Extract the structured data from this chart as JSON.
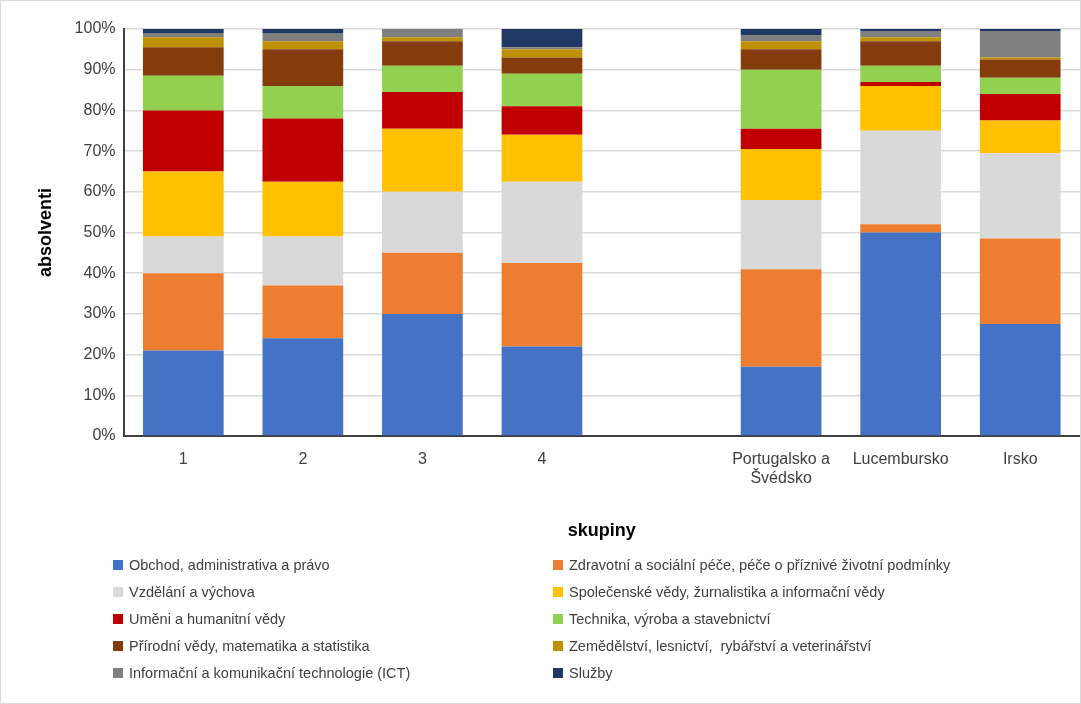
{
  "chart_data": {
    "type": "bar",
    "stacked": true,
    "xlabel": "skupiny",
    "ylabel": "absolventi",
    "categories": [
      "1",
      "2",
      "3",
      "4",
      null,
      "Portugalsko a Švédsko",
      "Lucembursko",
      "Irsko"
    ],
    "ylim": [
      0,
      100
    ],
    "yticks": [
      {
        "value": 0,
        "label": "0%"
      },
      {
        "value": 10,
        "label": "10%"
      },
      {
        "value": 20,
        "label": "20%"
      },
      {
        "value": 30,
        "label": "30%"
      },
      {
        "value": 40,
        "label": "40%"
      },
      {
        "value": 50,
        "label": "50%"
      },
      {
        "value": 60,
        "label": "60%"
      },
      {
        "value": 70,
        "label": "70%"
      },
      {
        "value": 80,
        "label": "80%"
      },
      {
        "value": 90,
        "label": "90%"
      },
      {
        "value": 100,
        "label": "100%"
      }
    ],
    "grid": "y",
    "legend": "bottom",
    "series": [
      {
        "name": "Obchod, administrativa a právo",
        "color": "#4472c4",
        "values": [
          21,
          24,
          30,
          22,
          null,
          17,
          50,
          27.5
        ]
      },
      {
        "name": "Zdravotní a sociální péče, péče o příznivé životní podmínky",
        "color": "#ed7d31",
        "values": [
          19,
          13,
          15,
          20.5,
          null,
          24,
          2,
          21
        ]
      },
      {
        "name": "Vzdělání a výchova",
        "color": "#d9d9d9",
        "values": [
          9,
          12,
          15,
          20,
          null,
          17,
          23,
          21
        ]
      },
      {
        "name": "Společenské vědy, žurnalistika a informační vědy",
        "color": "#ffc000",
        "values": [
          16,
          13.5,
          15.5,
          11.5,
          null,
          12.5,
          11,
          8
        ]
      },
      {
        "name": "Uměni a humanitní vědy",
        "color": "#c00000",
        "values": [
          15,
          15.5,
          9,
          7,
          null,
          5,
          1,
          6.5
        ]
      },
      {
        "name": "Technika, výroba a stavebnictví",
        "color": "#92d050",
        "values": [
          8.5,
          8,
          6.5,
          8,
          null,
          14.5,
          4,
          4
        ]
      },
      {
        "name": "Přírodní vědy, matematika a statistika",
        "color": "#843c0c",
        "values": [
          7,
          9,
          6,
          4,
          null,
          5,
          6,
          4.5
        ]
      },
      {
        "name": "Zemědělství, lesnictví,  rybářství a veterinářství",
        "color": "#bf9000",
        "values": [
          2.5,
          2,
          1,
          2,
          null,
          2,
          1,
          0.5
        ]
      },
      {
        "name": "Informační a komunikační technologie (ICT)",
        "color": "#7f7f7f",
        "values": [
          1,
          2,
          2,
          0.5,
          null,
          1.5,
          1.5,
          6.5
        ]
      },
      {
        "name": "Služby",
        "color": "#203864",
        "values": [
          1,
          1,
          0,
          4.5,
          null,
          1.5,
          0.5,
          0.5
        ]
      }
    ]
  }
}
